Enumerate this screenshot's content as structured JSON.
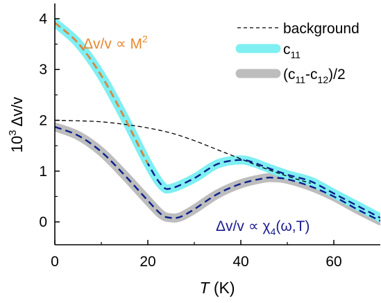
{
  "chart_data": {
    "type": "line",
    "xlabel_italic": "T",
    "xlabel_unit": " (K)",
    "ylabel_prefix": "10",
    "ylabel_sup": "3",
    "ylabel_rest": " Δv/v",
    "xlim": [
      0,
      70
    ],
    "ylim": [
      -0.45,
      4.3
    ],
    "xticks": [
      0,
      20,
      40,
      60
    ],
    "yticks": [
      0,
      1,
      2,
      3,
      4
    ],
    "legend_position": "top-right",
    "series": [
      {
        "name": "c11",
        "legend_main": "c",
        "legend_sub": "11",
        "color": "#7FEFF2",
        "x": [
          0,
          5,
          10,
          15,
          20,
          23,
          25,
          30,
          35,
          40,
          43,
          45,
          50,
          55,
          60,
          65,
          70
        ],
        "y": [
          3.92,
          3.52,
          2.88,
          2.05,
          1.15,
          0.72,
          0.66,
          0.86,
          1.14,
          1.22,
          1.16,
          1.09,
          0.93,
          0.8,
          0.56,
          0.32,
          0.08
        ]
      },
      {
        "name": "(c11-c12)/2",
        "legend_main": "(c",
        "legend_sub1": "11",
        "legend_mid": "-c",
        "legend_sub2": "12",
        "legend_end": ")/2",
        "color": "#BDBDBD",
        "x": [
          0,
          5,
          10,
          15,
          20,
          23,
          25,
          27,
          30,
          35,
          40,
          45,
          47,
          50,
          55,
          60,
          65,
          70
        ],
        "y": [
          1.87,
          1.7,
          1.38,
          0.92,
          0.42,
          0.14,
          0.08,
          0.1,
          0.25,
          0.55,
          0.75,
          0.86,
          0.87,
          0.84,
          0.7,
          0.5,
          0.25,
          0.02
        ]
      },
      {
        "name": "background",
        "color": "#000000",
        "dashed": true,
        "x": [
          0,
          5,
          10,
          15,
          20,
          25,
          30,
          35,
          40,
          45,
          50,
          55
        ],
        "y": [
          2.0,
          1.99,
          1.97,
          1.92,
          1.85,
          1.75,
          1.6,
          1.42,
          1.24,
          1.06,
          0.9,
          0.76
        ]
      }
    ],
    "fit_color": "#0A1F8C",
    "annotations": [
      {
        "id": "m2",
        "text_main": "Δv/v ∝ M",
        "text_sup": "2",
        "color": "#E8882B"
      },
      {
        "id": "chi4",
        "text_main": "Δv/v ∝  χ",
        "text_sub": "4",
        "text_end": "(ω,T)",
        "color": "#1B1B8F"
      }
    ],
    "legend_background": "background"
  }
}
